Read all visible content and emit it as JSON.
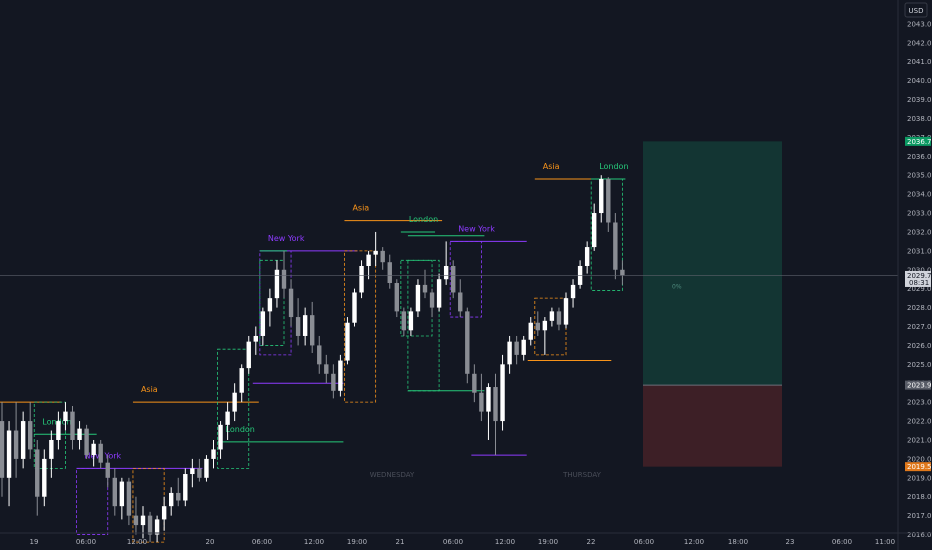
{
  "currency": "USD",
  "colors": {
    "background": "#131722",
    "asia": "#f7931a",
    "london": "#26c97a",
    "newyork": "#8e3bff",
    "candle_up": "#ffffff",
    "candle_down": "#8a8d94",
    "reward_fill": "#133533",
    "risk_fill": "#3d1f26",
    "target_badge": "#0c9a63",
    "stop_badge": "#e0781b",
    "current_badge": "#d1d4dc",
    "entry_badge": "#575b66"
  },
  "chart_data": {
    "type": "candlestick",
    "y_range": [
      2015.5,
      2044
    ],
    "y_ticks": [
      "2016.00",
      "2017.00",
      "2018.00",
      "2019.00",
      "2020.00",
      "2021.00",
      "2022.00",
      "2023.00",
      "2024.00",
      "2025.00",
      "2026.00",
      "2027.00",
      "2028.00",
      "2029.00",
      "2030.00",
      "2031.00",
      "2032.00",
      "2033.00",
      "2034.00",
      "2035.00",
      "2036.00",
      "2037.00",
      "2038.00",
      "2039.00",
      "2040.00",
      "2041.00",
      "2042.00",
      "2043.00"
    ],
    "x_ticks": [
      "19",
      "06:00",
      "12:00",
      "20",
      "06:00",
      "12:00",
      "19:00",
      "21",
      "06:00",
      "12:00",
      "19:00",
      "22",
      "06:00",
      "12:00",
      "18:00",
      "23",
      "06:00",
      "11:00"
    ],
    "day_watermarks": [
      "WEDNESDAY",
      "THURSDAY"
    ],
    "session_labels": {
      "asia": "Asia",
      "london": "London",
      "newyork": "New York"
    },
    "position": {
      "target": 2036.79,
      "entry": 2023.9,
      "stop": 2019.59,
      "target_label": "2036.79",
      "entry_label": "2023.90",
      "stop_label": "2019.59"
    },
    "current_price": {
      "label": "2029.70",
      "countdown": "08:31",
      "value": 2029.7
    },
    "marker_text": "0%",
    "candles": [
      [
        2022,
        2023,
        2018,
        2019
      ],
      [
        2019,
        2022,
        2017.5,
        2021.5
      ],
      [
        2021.5,
        2023,
        2019,
        2020
      ],
      [
        2020,
        2022.5,
        2019.5,
        2022
      ],
      [
        2022,
        2023,
        2020,
        2020.5
      ],
      [
        2020.5,
        2021,
        2017,
        2018
      ],
      [
        2018,
        2020.5,
        2017.5,
        2020
      ],
      [
        2020,
        2021.5,
        2019,
        2021
      ],
      [
        2021,
        2022.5,
        2020.5,
        2022
      ],
      [
        2022,
        2023,
        2021.5,
        2022.5
      ],
      [
        2022.5,
        2022.8,
        2020.5,
        2021
      ],
      [
        2021,
        2022,
        2020.5,
        2021.6
      ],
      [
        2021.6,
        2021.8,
        2020,
        2020.2
      ],
      [
        2020.2,
        2021,
        2019.6,
        2020.8
      ],
      [
        2020.8,
        2021,
        2019.5,
        2019.8
      ],
      [
        2019.8,
        2020.2,
        2018.5,
        2019
      ],
      [
        2019,
        2019.5,
        2017,
        2017.5
      ],
      [
        2017.5,
        2019,
        2016.8,
        2018.8
      ],
      [
        2018.8,
        2019,
        2016.5,
        2017
      ],
      [
        2017,
        2018,
        2016,
        2016.5
      ],
      [
        2016.5,
        2017.5,
        2015.8,
        2017
      ],
      [
        2017,
        2017.2,
        2015.6,
        2016
      ],
      [
        2016,
        2017,
        2015.6,
        2016.8
      ],
      [
        2016.8,
        2018,
        2016.2,
        2017.5
      ],
      [
        2017.5,
        2018.5,
        2017,
        2018.2
      ],
      [
        2018.2,
        2019,
        2017.5,
        2017.8
      ],
      [
        2017.8,
        2019.5,
        2017.5,
        2019.2
      ],
      [
        2019.2,
        2020,
        2018.5,
        2019.5
      ],
      [
        2019.5,
        2020,
        2018.8,
        2019
      ],
      [
        2019,
        2020.2,
        2018.8,
        2020
      ],
      [
        2020,
        2021,
        2019.5,
        2020.5
      ],
      [
        2020.5,
        2022,
        2020,
        2021.8
      ],
      [
        2021.8,
        2023,
        2021,
        2022.5
      ],
      [
        2022.5,
        2024,
        2022,
        2023.5
      ],
      [
        2023.5,
        2025,
        2023,
        2024.8
      ],
      [
        2024.8,
        2026.5,
        2024.5,
        2026.2
      ],
      [
        2026.2,
        2027,
        2025.5,
        2026.5
      ],
      [
        2026.5,
        2028,
        2026,
        2027.8
      ],
      [
        2027.8,
        2029,
        2027,
        2028.5
      ],
      [
        2028.5,
        2030.5,
        2028,
        2030
      ],
      [
        2030,
        2031,
        2028.5,
        2029
      ],
      [
        2029,
        2029.5,
        2027,
        2027.5
      ],
      [
        2027.5,
        2028.5,
        2026,
        2026.5
      ],
      [
        2026.5,
        2028,
        2026,
        2027.6
      ],
      [
        2027.6,
        2028.3,
        2025.6,
        2026
      ],
      [
        2026,
        2026.5,
        2024.5,
        2025
      ],
      [
        2025,
        2025.5,
        2024,
        2024.5
      ],
      [
        2024.5,
        2025,
        2023.2,
        2023.6
      ],
      [
        2023.6,
        2025.5,
        2023.3,
        2025.2
      ],
      [
        2025.2,
        2027.5,
        2025,
        2027.2
      ],
      [
        2027.2,
        2029,
        2027,
        2028.8
      ],
      [
        2028.8,
        2030.5,
        2028.5,
        2030.2
      ],
      [
        2030.2,
        2031,
        2029.5,
        2030.8
      ],
      [
        2030.8,
        2032,
        2030.2,
        2031
      ],
      [
        2031,
        2031.2,
        2030,
        2030.4
      ],
      [
        2030.4,
        2030.8,
        2029,
        2029.3
      ],
      [
        2029.3,
        2029.5,
        2027.5,
        2027.8
      ],
      [
        2027.8,
        2028,
        2026.5,
        2026.8
      ],
      [
        2026.8,
        2028,
        2026.5,
        2027.8
      ],
      [
        2027.8,
        2029.5,
        2027.5,
        2029.2
      ],
      [
        2029.2,
        2030,
        2028.5,
        2028.8
      ],
      [
        2028.8,
        2029,
        2027.5,
        2028
      ],
      [
        2028,
        2029.8,
        2027.8,
        2029.5
      ],
      [
        2029.5,
        2031.5,
        2029.2,
        2030.2
      ],
      [
        2030.2,
        2030.5,
        2028.5,
        2028.8
      ],
      [
        2028.8,
        2029.5,
        2027.5,
        2027.8
      ],
      [
        2027.8,
        2028,
        2024,
        2024.5
      ],
      [
        2024.5,
        2025,
        2023,
        2023.5
      ],
      [
        2023.5,
        2024.5,
        2022,
        2022.5
      ],
      [
        2022.5,
        2024,
        2021,
        2023.8
      ],
      [
        2023.8,
        2024.5,
        2020.2,
        2022
      ],
      [
        2022,
        2025.5,
        2021.5,
        2025
      ],
      [
        2025,
        2026.5,
        2024.5,
        2026.2
      ],
      [
        2026.2,
        2026.5,
        2025,
        2025.5
      ],
      [
        2025.5,
        2026.5,
        2025.2,
        2026.3
      ],
      [
        2026.3,
        2027.5,
        2026,
        2027.2
      ],
      [
        2027.2,
        2027.8,
        2026.5,
        2026.8
      ],
      [
        2026.8,
        2027.5,
        2025.5,
        2027.3
      ],
      [
        2027.3,
        2028,
        2027,
        2027.8
      ],
      [
        2027.8,
        2028,
        2026.8,
        2027.1
      ],
      [
        2027.1,
        2028.8,
        2026.9,
        2028.5
      ],
      [
        2028.5,
        2029.5,
        2028,
        2029.2
      ],
      [
        2029.2,
        2030.5,
        2029,
        2030.2
      ],
      [
        2030.2,
        2031.5,
        2029.8,
        2031.2
      ],
      [
        2031.2,
        2033.5,
        2031,
        2033
      ],
      [
        2033,
        2035,
        2032.5,
        2034.8
      ],
      [
        2034.8,
        2034.9,
        2032,
        2032.5
      ],
      [
        2032.5,
        2033,
        2029.5,
        2030
      ],
      [
        2030,
        2030.5,
        2029.2,
        2029.7
      ]
    ],
    "sessions": [
      {
        "type": "asia",
        "label_text": true,
        "start": -5,
        "end": 8,
        "level": 2023,
        "box_hi": 2023,
        "box_lo": 2017
      },
      {
        "type": "london",
        "label_text": true,
        "start": 5,
        "end": 13,
        "level": 2021.3,
        "box_hi": 2023,
        "box_lo": 2019.5
      },
      {
        "type": "newyork",
        "label_text": true,
        "start": 11,
        "end": 28,
        "level": 2019.5,
        "box_hi": 2019.5,
        "box_lo": 2016
      },
      {
        "type": "asia",
        "label_text": true,
        "start": 19,
        "end": 36,
        "level": 2023,
        "box_hi": 2019.5,
        "box_lo": 2015.6
      },
      {
        "type": "london",
        "label_text": true,
        "start": 31,
        "end": 48,
        "level": 2020.9,
        "box_hi": 2025.8,
        "box_lo": 2019.5
      },
      {
        "type": "newyork",
        "label_text": true,
        "start": 37,
        "end": 50,
        "level": 2031,
        "box_hi": 2031,
        "box_lo": 2025.5
      },
      {
        "type": "london",
        "label_text": false,
        "start": 37,
        "end": 40,
        "level": 2031,
        "box_hi": 2030.5,
        "box_lo": 2026
      },
      {
        "type": "newyork",
        "label_text": false,
        "start": 36,
        "end": 48,
        "level": 2024,
        "box_hi": 2024,
        "box_lo": 2024
      },
      {
        "type": "asia",
        "label_text": true,
        "start": 49,
        "end": 62,
        "level": 2032.6,
        "box_hi": 2031,
        "box_lo": 2023
      },
      {
        "type": "london",
        "label_text": true,
        "start": 57,
        "end": 61,
        "level": 2032,
        "box_hi": 2030.5,
        "box_lo": 2026.5
      },
      {
        "type": "newyork",
        "label_text": true,
        "start": 64,
        "end": 74,
        "level": 2031.5,
        "box_hi": 2031.5,
        "box_lo": 2027.5
      },
      {
        "type": "london",
        "label_text": false,
        "start": 58,
        "end": 68,
        "level": 2031.8,
        "box_hi": 2030.5,
        "box_lo": 2023.6
      },
      {
        "type": "newyork",
        "label_text": false,
        "start": 67,
        "end": 74,
        "level": 2020.2,
        "box_hi": 2020.2,
        "box_lo": 2020.2
      },
      {
        "type": "london",
        "label_text": false,
        "start": 58,
        "end": 68,
        "level": 2023.6,
        "box_hi": 2023.6,
        "box_lo": 2023.6
      },
      {
        "type": "asia",
        "label_text": true,
        "start": 76,
        "end": 86,
        "level": 2034.8,
        "box_hi": 2028.5,
        "box_lo": 2025.5
      },
      {
        "type": "london",
        "label_text": true,
        "start": 84,
        "end": 88,
        "level": 2034.8,
        "box_hi": 2034.8,
        "box_lo": 2028.9
      },
      {
        "type": "asia",
        "label_text": false,
        "start": 75,
        "end": 86,
        "level": 2025.2,
        "box_hi": 2025.2,
        "box_lo": 2025.2
      }
    ]
  }
}
